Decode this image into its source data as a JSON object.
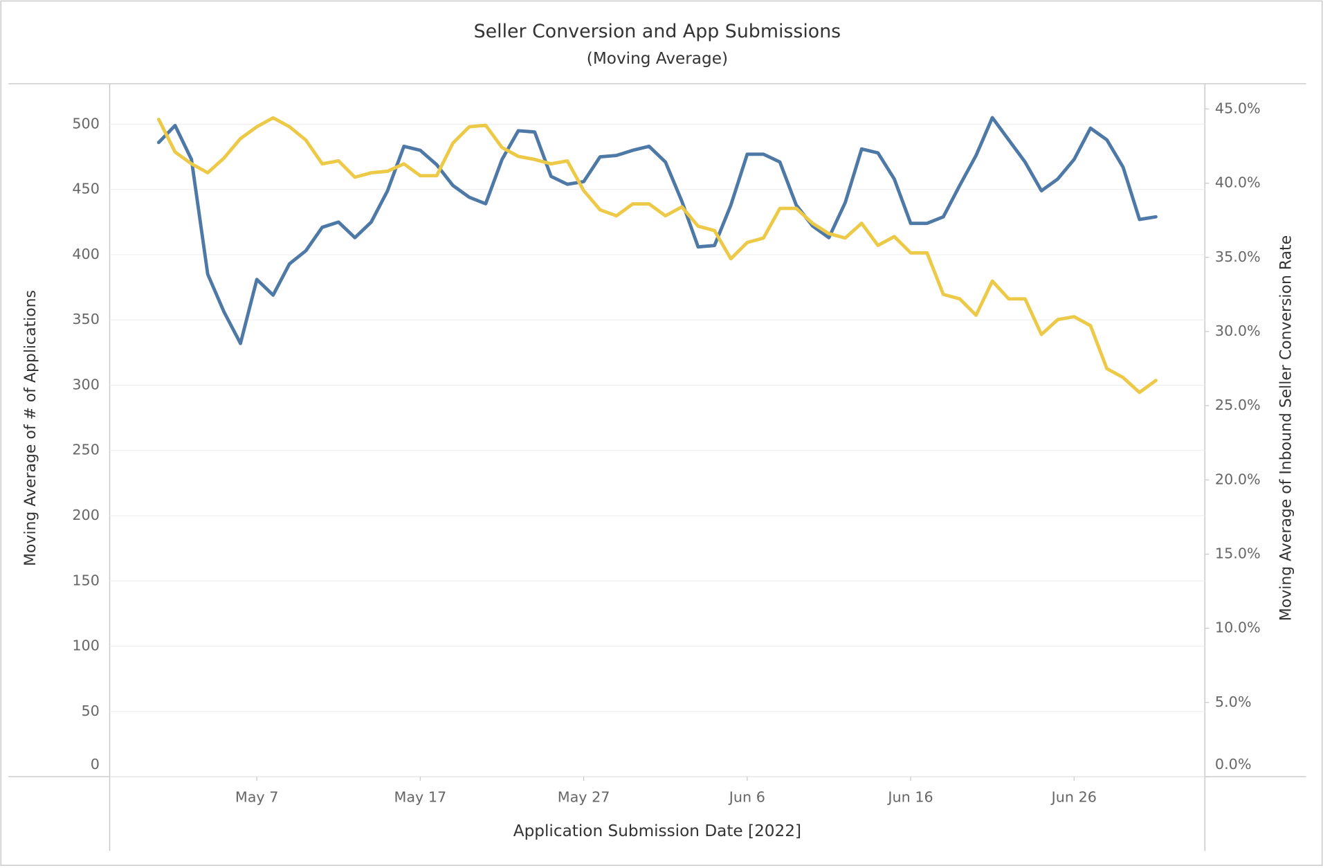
{
  "chart_data": {
    "type": "line",
    "title": "Seller Conversion and App Submissions",
    "subtitle": "(Moving Average)",
    "xlabel": "Application Submission Date [2022]",
    "ylabel": "Moving Average of # of Applications",
    "y2label": "Moving Average of Inbound Seller Conversion Rate",
    "x": [
      "2022-05-01",
      "2022-05-02",
      "2022-05-03",
      "2022-05-04",
      "2022-05-05",
      "2022-05-06",
      "2022-05-07",
      "2022-05-08",
      "2022-05-09",
      "2022-05-10",
      "2022-05-11",
      "2022-05-12",
      "2022-05-13",
      "2022-05-14",
      "2022-05-15",
      "2022-05-16",
      "2022-05-17",
      "2022-05-18",
      "2022-05-19",
      "2022-05-20",
      "2022-05-21",
      "2022-05-22",
      "2022-05-23",
      "2022-05-24",
      "2022-05-25",
      "2022-05-26",
      "2022-05-27",
      "2022-05-28",
      "2022-05-29",
      "2022-05-30",
      "2022-05-31",
      "2022-06-01",
      "2022-06-02",
      "2022-06-03",
      "2022-06-04",
      "2022-06-05",
      "2022-06-06",
      "2022-06-07",
      "2022-06-08",
      "2022-06-09",
      "2022-06-10",
      "2022-06-11",
      "2022-06-12",
      "2022-06-13",
      "2022-06-14",
      "2022-06-15",
      "2022-06-16",
      "2022-06-17",
      "2022-06-18",
      "2022-06-19",
      "2022-06-20",
      "2022-06-21",
      "2022-06-22",
      "2022-06-23",
      "2022-06-24",
      "2022-06-25",
      "2022-06-26",
      "2022-06-27",
      "2022-06-28",
      "2022-06-29",
      "2022-06-30",
      "2022-07-01"
    ],
    "xlim": [
      "2022-04-28",
      "2022-07-04"
    ],
    "xticks": [
      {
        "value": "2022-05-07",
        "label": "May 7"
      },
      {
        "value": "2022-05-17",
        "label": "May 17"
      },
      {
        "value": "2022-05-27",
        "label": "May 27"
      },
      {
        "value": "2022-06-06",
        "label": "Jun 6"
      },
      {
        "value": "2022-06-16",
        "label": "Jun 16"
      },
      {
        "value": "2022-06-26",
        "label": "Jun 26"
      }
    ],
    "ylim": [
      0,
      531
    ],
    "yticks": [
      0,
      50,
      100,
      150,
      200,
      250,
      300,
      350,
      400,
      450,
      500
    ],
    "y2lim": [
      0,
      46.7
    ],
    "y2ticks": [
      {
        "value": 0,
        "label": "0.0%"
      },
      {
        "value": 5,
        "label": "5.0%"
      },
      {
        "value": 10,
        "label": "10.0%"
      },
      {
        "value": 15,
        "label": "15.0%"
      },
      {
        "value": 20,
        "label": "20.0%"
      },
      {
        "value": 25,
        "label": "25.0%"
      },
      {
        "value": 30,
        "label": "30.0%"
      },
      {
        "value": 35,
        "label": "35.0%"
      },
      {
        "value": 40,
        "label": "40.0%"
      },
      {
        "value": 45,
        "label": "45.0%"
      }
    ],
    "grid": true,
    "series": [
      {
        "color": "#4e79a7",
        "values": [
          486,
          499,
          473,
          385,
          356,
          332,
          381,
          369,
          393,
          403,
          421,
          425,
          413,
          425,
          449,
          483,
          480,
          469,
          453,
          444,
          439,
          473,
          495,
          494,
          460,
          454,
          456,
          475,
          476,
          480,
          483,
          471,
          441,
          406,
          407,
          438,
          477,
          477,
          471,
          438,
          422,
          413,
          440,
          481,
          478,
          458,
          424,
          424,
          429,
          453,
          476,
          505,
          488,
          471,
          449,
          458,
          473,
          497,
          488,
          467,
          427,
          429
        ]
      },
      {
        "color": "#edc948",
        "axis": "y2",
        "values": [
          44.3,
          42.1,
          41.3,
          40.7,
          41.7,
          43.0,
          43.8,
          44.4,
          43.8,
          42.9,
          41.3,
          41.5,
          40.4,
          40.7,
          40.8,
          41.3,
          40.5,
          40.5,
          42.7,
          43.8,
          43.9,
          42.4,
          41.8,
          41.6,
          41.3,
          41.5,
          39.5,
          38.2,
          37.8,
          38.6,
          38.6,
          37.8,
          38.4,
          37.1,
          36.8,
          34.9,
          36.0,
          36.3,
          38.3,
          38.3,
          37.3,
          36.6,
          36.3,
          37.3,
          35.8,
          36.4,
          35.3,
          35.3,
          32.5,
          32.2,
          31.1,
          33.4,
          32.2,
          32.2,
          29.8,
          30.8,
          31.0,
          30.4,
          27.5,
          26.9,
          25.9,
          26.7
        ]
      }
    ]
  }
}
